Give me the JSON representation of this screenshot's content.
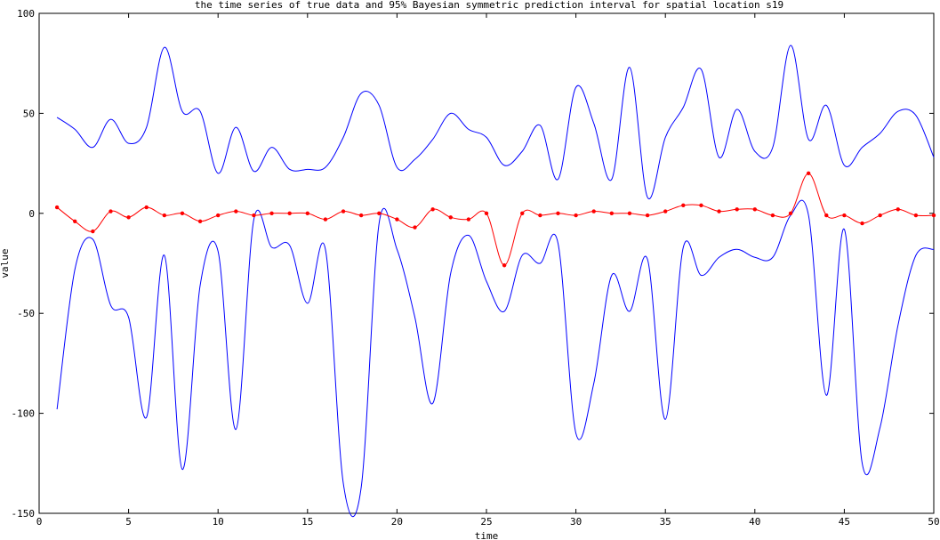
{
  "chart_data": {
    "type": "line",
    "title": "the time series of true data and 95% Bayesian symmetric prediction interval for spatial location s19",
    "xlabel": "time",
    "ylabel": "value",
    "xlim": [
      0,
      50
    ],
    "ylim": [
      -150,
      100
    ],
    "xticks": [
      0,
      5,
      10,
      15,
      20,
      25,
      30,
      35,
      40,
      45,
      50
    ],
    "yticks": [
      -150,
      -100,
      -50,
      0,
      50,
      100
    ],
    "grid": false,
    "legend": "none",
    "series": [
      {
        "color": "#0000ff",
        "marker": "none",
        "x": [
          1,
          2,
          3,
          4,
          5,
          6,
          7,
          8,
          9,
          10,
          11,
          12,
          13,
          14,
          15,
          16,
          17,
          18,
          19,
          20,
          21,
          22,
          23,
          24,
          25,
          26,
          27,
          28,
          29,
          30,
          31,
          32,
          33,
          34,
          35,
          36,
          37,
          38,
          39,
          40,
          41,
          42,
          43,
          44,
          45,
          46,
          47,
          48,
          49,
          50
        ],
        "values": [
          48,
          42,
          33,
          47,
          35,
          43,
          83,
          51,
          51,
          20,
          43,
          21,
          33,
          22,
          22,
          23,
          38,
          60,
          54,
          23,
          27,
          37,
          50,
          42,
          38,
          24,
          31,
          44,
          17,
          63,
          45,
          17,
          73,
          8,
          38,
          53,
          72,
          28,
          52,
          31,
          33,
          84,
          37,
          54,
          24,
          33,
          40,
          51,
          49,
          28
        ]
      },
      {
        "color": "#0000ff",
        "marker": "none",
        "x": [
          1,
          2,
          3,
          4,
          5,
          6,
          7,
          8,
          9,
          10,
          11,
          12,
          13,
          14,
          15,
          16,
          17,
          18,
          19,
          20,
          21,
          22,
          23,
          24,
          25,
          26,
          27,
          28,
          29,
          30,
          31,
          32,
          33,
          34,
          35,
          36,
          37,
          38,
          39,
          40,
          41,
          42,
          43,
          44,
          45,
          46,
          47,
          48,
          49,
          50
        ],
        "values": [
          -98,
          -28,
          -13,
          -46,
          -52,
          -102,
          -21,
          -128,
          -36,
          -19,
          -108,
          -3,
          -17,
          -16,
          -45,
          -18,
          -135,
          -137,
          -5,
          -18,
          -52,
          -95,
          -30,
          -11,
          -34,
          -49,
          -21,
          -25,
          -15,
          -110,
          -85,
          -31,
          -49,
          -23,
          -103,
          -17,
          -31,
          -22,
          -18,
          -22,
          -22,
          -1,
          -1,
          -91,
          -8,
          -125,
          -107,
          -56,
          -21,
          -18
        ]
      },
      {
        "color": "#ff0000",
        "marker": "dot",
        "x": [
          1,
          2,
          3,
          4,
          5,
          6,
          7,
          8,
          9,
          10,
          11,
          12,
          13,
          14,
          15,
          16,
          17,
          18,
          19,
          20,
          21,
          22,
          23,
          24,
          25,
          26,
          27,
          28,
          29,
          30,
          31,
          32,
          33,
          34,
          35,
          36,
          37,
          38,
          39,
          40,
          41,
          42,
          43,
          44,
          45,
          46,
          47,
          48,
          49,
          50
        ],
        "values": [
          3,
          -4,
          -9,
          1,
          -2,
          3,
          -1,
          0,
          -4,
          -1,
          1,
          -1,
          0,
          0,
          0,
          -3,
          1,
          -1,
          0,
          -3,
          -7,
          2,
          -2,
          -3,
          0,
          -26,
          0,
          -1,
          0,
          -1,
          1,
          0,
          0,
          -1,
          1,
          4,
          4,
          1,
          2,
          2,
          -1,
          0,
          20,
          -1,
          -1,
          -5,
          -1,
          2,
          -1,
          -1
        ]
      }
    ]
  }
}
